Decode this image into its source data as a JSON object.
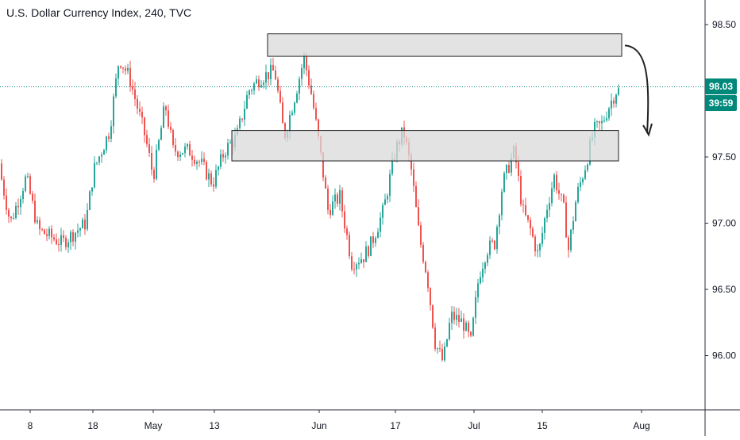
{
  "title": "U.S. Dollar Currency Index, 240, TVC",
  "last_price": "98.03",
  "countdown": "39:59",
  "colors": {
    "up": "#26a69a",
    "down": "#ef5350",
    "last_price_line": "#00897b",
    "zone_fill": "#d9d9d9",
    "zone_stroke": "#222222",
    "axis_line": "#2a2e39"
  },
  "chart_data": {
    "type": "candlestick",
    "title": "U.S. Dollar Currency Index, 240, TVC",
    "interval": "240",
    "source": "TVC",
    "x_labels": [
      "8",
      "18",
      "May",
      "13",
      "Jun",
      "17",
      "Jul",
      "15",
      "Aug"
    ],
    "y_ticks": [
      "98.50",
      "98.00",
      "97.50",
      "97.00",
      "96.50",
      "96.00"
    ],
    "ylim": [
      95.7,
      98.7
    ],
    "last_price": 98.03,
    "path_anchors": [
      [
        0,
        97.45
      ],
      [
        15,
        97.0
      ],
      [
        35,
        97.35
      ],
      [
        50,
        96.95
      ],
      [
        80,
        96.85
      ],
      [
        110,
        97.0
      ],
      [
        120,
        97.4
      ],
      [
        140,
        97.7
      ],
      [
        152,
        98.25
      ],
      [
        165,
        98.1
      ],
      [
        185,
        97.65
      ],
      [
        195,
        97.35
      ],
      [
        210,
        97.9
      ],
      [
        220,
        97.55
      ],
      [
        240,
        97.55
      ],
      [
        255,
        97.45
      ],
      [
        270,
        97.3
      ],
      [
        285,
        97.55
      ],
      [
        300,
        97.65
      ],
      [
        315,
        98.0
      ],
      [
        330,
        98.1
      ],
      [
        348,
        98.15
      ],
      [
        360,
        97.65
      ],
      [
        375,
        98.0
      ],
      [
        385,
        98.25
      ],
      [
        395,
        97.95
      ],
      [
        405,
        97.55
      ],
      [
        415,
        97.1
      ],
      [
        430,
        97.2
      ],
      [
        445,
        96.7
      ],
      [
        460,
        96.75
      ],
      [
        470,
        96.85
      ],
      [
        485,
        97.1
      ],
      [
        500,
        97.55
      ],
      [
        510,
        97.7
      ],
      [
        520,
        97.4
      ],
      [
        530,
        96.9
      ],
      [
        540,
        96.6
      ],
      [
        550,
        96.1
      ],
      [
        560,
        95.95
      ],
      [
        570,
        96.3
      ],
      [
        585,
        96.25
      ],
      [
        595,
        96.1
      ],
      [
        605,
        96.6
      ],
      [
        615,
        96.8
      ],
      [
        625,
        96.85
      ],
      [
        635,
        97.3
      ],
      [
        650,
        97.55
      ],
      [
        660,
        97.1
      ],
      [
        670,
        96.95
      ],
      [
        680,
        96.75
      ],
      [
        690,
        97.1
      ],
      [
        700,
        97.35
      ],
      [
        712,
        97.1
      ],
      [
        718,
        96.8
      ],
      [
        728,
        97.2
      ],
      [
        740,
        97.45
      ],
      [
        750,
        97.7
      ],
      [
        760,
        97.75
      ],
      [
        770,
        97.9
      ],
      [
        778,
        98.0
      ]
    ],
    "zones": [
      {
        "x0": 337,
        "x1": 783,
        "y_top": 98.43,
        "y_bottom": 98.26
      },
      {
        "x0": 292,
        "x1": 779,
        "y_top": 97.7,
        "y_bottom": 97.47
      }
    ],
    "arrow": {
      "x_start": 795,
      "y_start": 98.33,
      "x_end": 815,
      "y_end": 97.68
    }
  }
}
